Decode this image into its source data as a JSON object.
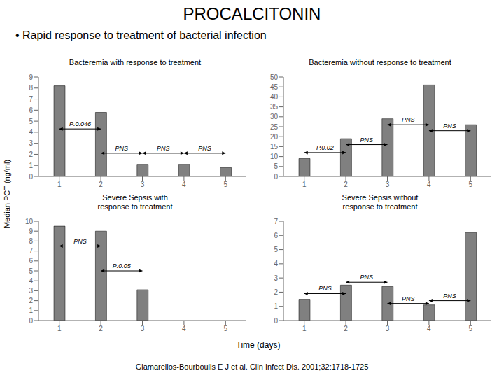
{
  "title": "PROCALCITONIN",
  "subtitle": "• Rapid response to treatment of bacterial infection",
  "ylabel": "Median PCT (ng/ml)",
  "xlabel": "Time (days)",
  "annotations": [
    "Giamarellos-Bourboulis E J et al. Clin Infect Dis. 2001;32:1718-1725"
  ],
  "chart_data": [
    {
      "type": "bar",
      "title": "Bacteremia with response to treatment",
      "x": [
        1,
        2,
        3,
        4,
        5
      ],
      "values": [
        8.2,
        5.8,
        1.1,
        1.1,
        0.8
      ],
      "xlim": [
        0.5,
        5.5
      ],
      "xticks": [
        1,
        2,
        3,
        4,
        5
      ],
      "ylim": [
        0,
        9
      ],
      "yticks": [
        0,
        1,
        2,
        3,
        4,
        5,
        6,
        7,
        8,
        9
      ],
      "color": "#808080",
      "grid": false,
      "annotations": [
        {
          "x1": 1,
          "x2": 2,
          "y": 4.3,
          "label": "P:0.046"
        },
        {
          "x1": 2,
          "x2": 3,
          "y": 2.1,
          "label": "PNS"
        },
        {
          "x1": 3,
          "x2": 4,
          "y": 2.1,
          "label": "PNS"
        },
        {
          "x1": 4,
          "x2": 5,
          "y": 2.1,
          "label": "PNS"
        }
      ]
    },
    {
      "type": "bar",
      "title": "Bacteremia without response to treatment",
      "x": [
        1,
        2,
        3,
        4,
        5
      ],
      "values": [
        9,
        19,
        29,
        46,
        26
      ],
      "xlim": [
        0.5,
        5.5
      ],
      "xticks": [
        1,
        2,
        3,
        4,
        5
      ],
      "ylim": [
        0,
        50
      ],
      "yticks": [
        0,
        5,
        10,
        15,
        20,
        25,
        30,
        35,
        40,
        45,
        50
      ],
      "color": "#808080",
      "grid": false,
      "annotations": [
        {
          "x1": 1,
          "x2": 2,
          "y": 12,
          "label": "P.0.02"
        },
        {
          "x1": 2,
          "x2": 3,
          "y": 16,
          "label": "PNS"
        },
        {
          "x1": 3,
          "x2": 4,
          "y": 26,
          "label": "PNS"
        },
        {
          "x1": 4,
          "x2": 5,
          "y": 23,
          "label": "PNS"
        }
      ]
    },
    {
      "type": "bar",
      "title": "Severe Sepsis with\nresponse to treatment",
      "x": [
        1,
        2,
        3,
        4,
        5
      ],
      "values": [
        9.5,
        9.0,
        3.1,
        0,
        0
      ],
      "xlim": [
        0.5,
        5.5
      ],
      "xticks": [
        1,
        2,
        3,
        4,
        5
      ],
      "ylim": [
        0,
        10
      ],
      "yticks": [
        0,
        1,
        2,
        3,
        4,
        5,
        6,
        7,
        8,
        9,
        10
      ],
      "color": "#808080",
      "grid": false,
      "annotations": [
        {
          "x1": 1,
          "x2": 2,
          "y": 7.5,
          "label": "PNS"
        },
        {
          "x1": 2,
          "x2": 3,
          "y": 5.0,
          "label": "P:0.05"
        }
      ]
    },
    {
      "type": "bar",
      "title": "Severe Sepsis without\nresponse to treatment",
      "x": [
        1,
        2,
        3,
        4,
        5
      ],
      "values": [
        1.5,
        2.5,
        2.4,
        1.1,
        6.2
      ],
      "xlim": [
        0.5,
        5.5
      ],
      "xticks": [
        1,
        2,
        3,
        4,
        5
      ],
      "ylim": [
        0,
        7
      ],
      "yticks": [
        0,
        1,
        2,
        3,
        4,
        5,
        6,
        7
      ],
      "color": "#808080",
      "grid": false,
      "annotations": [
        {
          "x1": 1,
          "x2": 2,
          "y": 1.9,
          "label": "PNS"
        },
        {
          "x1": 2,
          "x2": 3,
          "y": 2.7,
          "label": "PNS"
        },
        {
          "x1": 3,
          "x2": 4,
          "y": 1.2,
          "label": "PNS"
        },
        {
          "x1": 4,
          "x2": 5,
          "y": 1.4,
          "label": "PNS"
        }
      ]
    }
  ]
}
